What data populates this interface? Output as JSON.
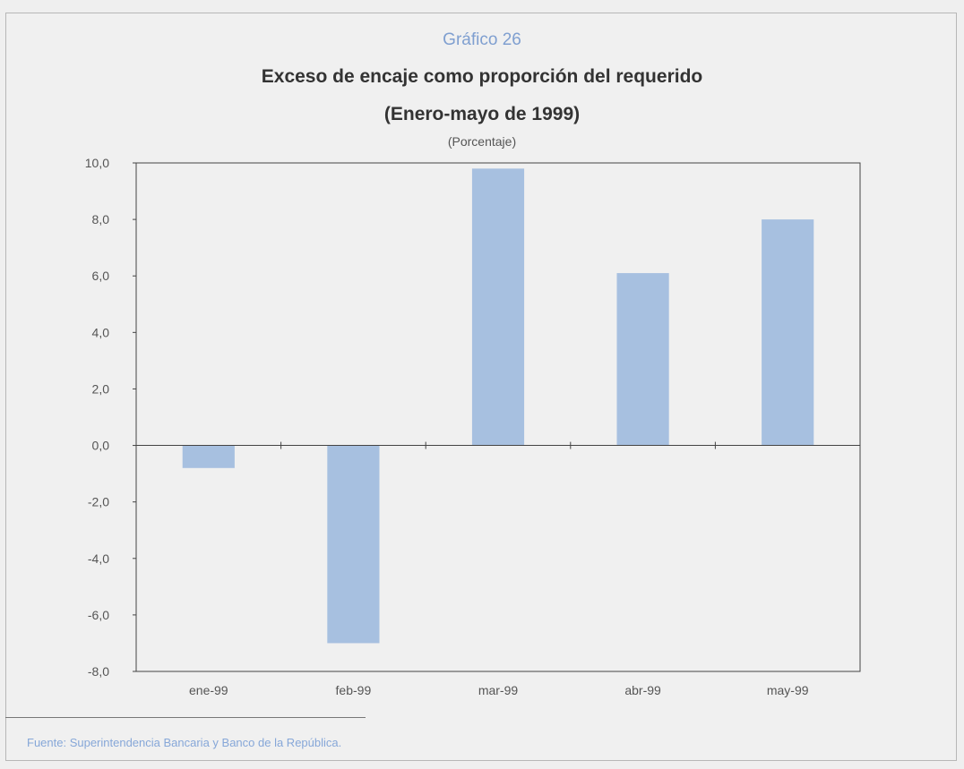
{
  "figure_number": "Gráfico 26",
  "source": "Fuente: Superintendencia Bancaria y Banco de la República.",
  "colors": {
    "bar": "#a7c0e0",
    "axis": "#444444",
    "accent": "#7f9fd0"
  },
  "chart_data": {
    "type": "bar",
    "title": "Exceso de encaje como proporción del requerido",
    "subtitle": "(Enero-mayo de 1999)",
    "unit_label": "(Porcentaje)",
    "categories": [
      "ene-99",
      "feb-99",
      "mar-99",
      "abr-99",
      "may-99"
    ],
    "values": [
      -0.8,
      -7.0,
      9.8,
      6.1,
      8.0
    ],
    "ylim": [
      -8,
      10
    ],
    "yticks": [
      -8,
      -6,
      -4,
      -2,
      0,
      2,
      4,
      6,
      8,
      10
    ],
    "ytick_labels": [
      "-8,0",
      "-6,0",
      "-4,0",
      "-2,0",
      "0,0",
      "2,0",
      "4,0",
      "6,0",
      "8,0",
      "10,0"
    ],
    "grid": false,
    "legend": "none"
  }
}
